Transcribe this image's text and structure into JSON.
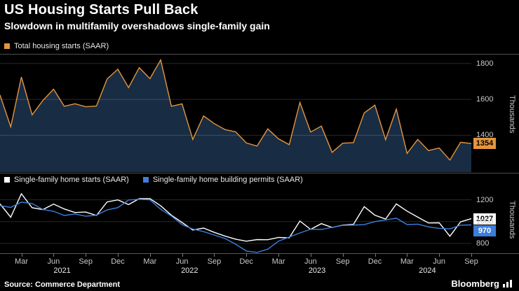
{
  "header": {
    "title": "US Housing Starts Pull Back",
    "subtitle": "Slowdown in multifamily overshadows single-family gain"
  },
  "footer": {
    "source": "Source: Commerce Department",
    "brand": "Bloomberg"
  },
  "colors": {
    "orange": "#e5953e",
    "area_fill": "#182c44",
    "blue": "#3d7edd",
    "white": "#ffffff",
    "grid": "rgba(255,255,255,0.16)",
    "axis_text": "#c9c9c9",
    "separator": "#4d4d4d"
  },
  "chart_data": [
    {
      "type": "area",
      "ylabel": "Thousands",
      "ylim": [
        1195,
        1850
      ],
      "yticks": [
        1400,
        1600,
        1800
      ],
      "grid": true,
      "legend_position": "top-left",
      "legend": [
        {
          "label": "Total housing starts (SAAR)",
          "color": "#e5953e"
        }
      ],
      "series": [
        {
          "name": "Total housing starts (SAAR)",
          "color": "#e5953e",
          "last_label": "1354",
          "label_bg": "#e5953e",
          "label_fg": "#000000",
          "values": [
            1625,
            1447,
            1725,
            1514,
            1594,
            1657,
            1562,
            1576,
            1559,
            1563,
            1714,
            1768,
            1666,
            1777,
            1716,
            1820,
            1562,
            1575,
            1377,
            1508,
            1465,
            1432,
            1419,
            1357,
            1340,
            1436,
            1380,
            1348,
            1583,
            1418,
            1451,
            1305,
            1356,
            1359,
            1525,
            1568,
            1376,
            1546,
            1299,
            1377,
            1315,
            1329,
            1262,
            1361,
            1354
          ]
        }
      ]
    },
    {
      "type": "line",
      "ylabel": "Thousands",
      "ylim": [
        710,
        1300
      ],
      "yticks": [
        800,
        1000,
        1200
      ],
      "grid": true,
      "legend_position": "top-left",
      "legend": [
        {
          "label": "Single-family home starts (SAAR)",
          "color": "#ffffff"
        },
        {
          "label": "Single-family home building permits (SAAR)",
          "color": "#3d7edd"
        }
      ],
      "series": [
        {
          "name": "Single-family home starts (SAAR)",
          "color": "#ffffff",
          "last_label": "1027",
          "label_bg": "#ffffff",
          "label_fg": "#000000",
          "values": [
            1162,
            1040,
            1255,
            1127,
            1110,
            1160,
            1116,
            1083,
            1088,
            1056,
            1180,
            1199,
            1156,
            1210,
            1211,
            1145,
            1058,
            992,
            922,
            941,
            901,
            868,
            839,
            820,
            835,
            834,
            854,
            852,
            1005,
            929,
            981,
            946,
            968,
            975,
            1137,
            1059,
            1023,
            1162,
            1096,
            1041,
            988,
            989,
            866,
            998,
            1027
          ]
        },
        {
          "name": "Single-family home building permits (SAAR)",
          "color": "#3d7edd",
          "last_label": "970",
          "label_bg": "#3d7edd",
          "label_fg": "#ffffff",
          "values": [
            1147,
            1130,
            1178,
            1166,
            1111,
            1095,
            1056,
            1070,
            1049,
            1058,
            1107,
            1128,
            1198,
            1205,
            1199,
            1113,
            1051,
            972,
            932,
            908,
            877,
            845,
            793,
            730,
            718,
            747,
            821,
            858,
            896,
            930,
            928,
            947,
            965,
            968,
            972,
            1000,
            1015,
            1031,
            973,
            977,
            952,
            938,
            933,
            967,
            970
          ]
        }
      ]
    }
  ],
  "x_axis": {
    "start": "2021-01",
    "end": "2024-09",
    "points": 45,
    "ticks": [
      {
        "index": 2,
        "label": "Mar"
      },
      {
        "index": 5,
        "label": "Jun"
      },
      {
        "index": 8,
        "label": "Sep"
      },
      {
        "index": 11,
        "label": "Dec"
      },
      {
        "index": 14,
        "label": "Mar"
      },
      {
        "index": 17,
        "label": "Jun"
      },
      {
        "index": 20,
        "label": "Sep"
      },
      {
        "index": 23,
        "label": "Dec"
      },
      {
        "index": 26,
        "label": "Mar"
      },
      {
        "index": 29,
        "label": "Jun"
      },
      {
        "index": 32,
        "label": "Sep"
      },
      {
        "index": 35,
        "label": "Dec"
      },
      {
        "index": 38,
        "label": "Mar"
      },
      {
        "index": 41,
        "label": "Jun"
      },
      {
        "index": 44,
        "label": "Sep"
      }
    ],
    "years": [
      {
        "index": 5.8,
        "label": "2021"
      },
      {
        "index": 17.7,
        "label": "2022"
      },
      {
        "index": 29.6,
        "label": "2023"
      },
      {
        "index": 39.9,
        "label": "2024"
      }
    ]
  }
}
